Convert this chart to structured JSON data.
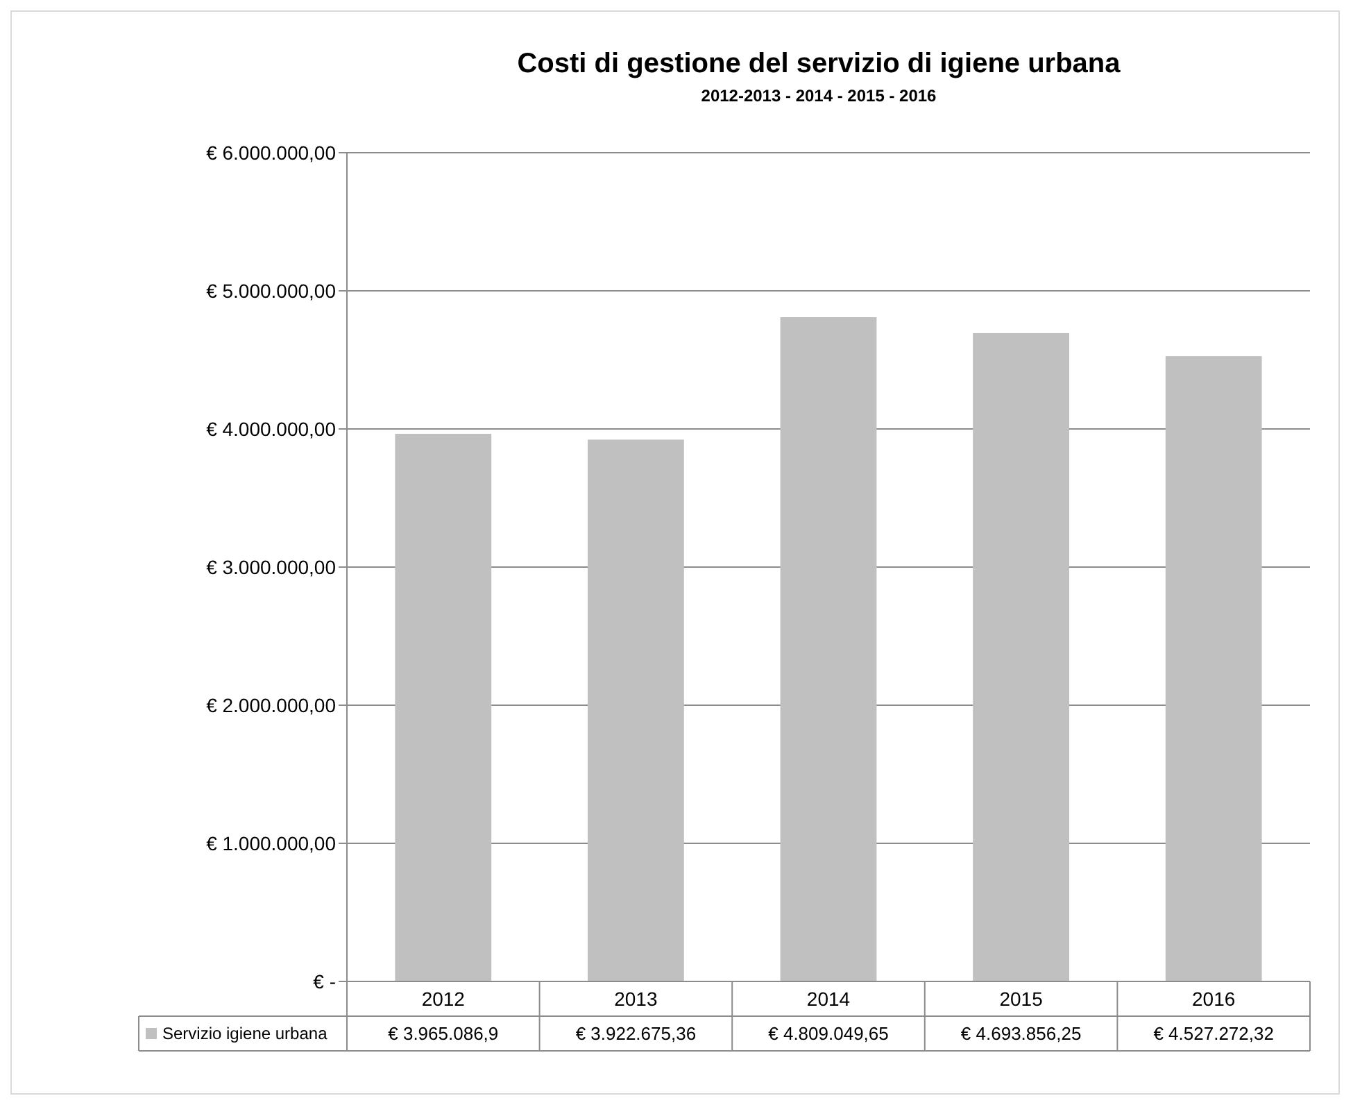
{
  "chart_data": {
    "type": "bar",
    "title": "Costi di gestione del servizio di igiene urbana",
    "subtitle": "2012-2013 - 2014 - 2015 - 2016",
    "categories": [
      "2012",
      "2013",
      "2014",
      "2015",
      "2016"
    ],
    "series": [
      {
        "name": "Servizio igiene urbana",
        "color": "#c0c0c0",
        "values": [
          3965086.9,
          3922675.36,
          4809049.65,
          4693856.25,
          4527272.32
        ],
        "value_labels": [
          "€ 3.965.086,9",
          "€ 3.922.675,36",
          "€ 4.809.049,65",
          "€ 4.693.856,25",
          "€ 4.527.272,32"
        ]
      }
    ],
    "ylim": [
      0,
      6000000
    ],
    "yticks": [
      {
        "value": 0,
        "label": "€ -"
      },
      {
        "value": 1000000,
        "label": "€ 1.000.000,00"
      },
      {
        "value": 2000000,
        "label": "€ 2.000.000,00"
      },
      {
        "value": 3000000,
        "label": "€ 3.000.000,00"
      },
      {
        "value": 4000000,
        "label": "€ 4.000.000,00"
      },
      {
        "value": 5000000,
        "label": "€ 5.000.000,00"
      },
      {
        "value": 6000000,
        "label": "€ 6.000.000,00"
      }
    ],
    "grid": "y",
    "legend": "bottom"
  }
}
